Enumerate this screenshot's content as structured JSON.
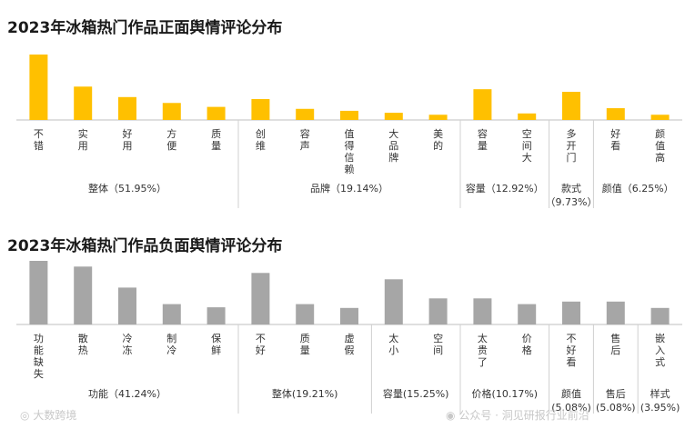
{
  "chart_data": [
    {
      "type": "bar",
      "title": "2023年冰箱热门作品正面舆情评论分布",
      "color": "#FFC000",
      "categories": [
        "不错",
        "实用",
        "好用",
        "方便",
        "质量",
        "创维",
        "容声",
        "值得信赖",
        "大品牌",
        "美的",
        "容量",
        "空间大",
        "多开门",
        "好看",
        "颜值高"
      ],
      "values": [
        100,
        51,
        35,
        26,
        20,
        32,
        17,
        14,
        11,
        8,
        47,
        10,
        43,
        18,
        8
      ],
      "ylim": [
        0,
        100
      ],
      "groups": [
        {
          "label": "整体（51.95%）",
          "start": 0,
          "end": 4
        },
        {
          "label": "品牌（19.14%）",
          "start": 5,
          "end": 9
        },
        {
          "label": "容量（12.92%）",
          "start": 10,
          "end": 11
        },
        {
          "label": "款式（9.73%）",
          "start": 12,
          "end": 12
        },
        {
          "label": "颜值（6.25%）",
          "start": 13,
          "end": 14
        }
      ]
    },
    {
      "type": "bar",
      "title": "2023年冰箱热门作品负面舆情评论分布",
      "color": "#A6A6A6",
      "categories": [
        "功能缺失",
        "散热",
        "冷冻",
        "制冷",
        "保鲜",
        "不好",
        "质量",
        "虚假",
        "太小",
        "空间",
        "太贵了",
        "价格",
        "不好看",
        "售后",
        "嵌入式"
      ],
      "values": [
        100,
        91,
        58,
        32,
        27,
        81,
        32,
        26,
        71,
        41,
        41,
        32,
        36,
        36,
        26
      ],
      "ylim": [
        0,
        100
      ],
      "groups": [
        {
          "label": "功能（41.24%）",
          "start": 0,
          "end": 4
        },
        {
          "label": "整体(19.21%)",
          "start": 5,
          "end": 7
        },
        {
          "label": "容量(15.25%)",
          "start": 8,
          "end": 9
        },
        {
          "label": "价格(10.17%)",
          "start": 10,
          "end": 11
        },
        {
          "label": "颜值(5.08%)",
          "start": 12,
          "end": 12
        },
        {
          "label": "售后(5.08%)",
          "start": 13,
          "end": 13
        },
        {
          "label": "样式(3.95%)",
          "start": 14,
          "end": 14
        }
      ]
    }
  ],
  "watermarks": {
    "left": "大数跨境",
    "right": "公众号 · 洞见研报行业前沿"
  }
}
